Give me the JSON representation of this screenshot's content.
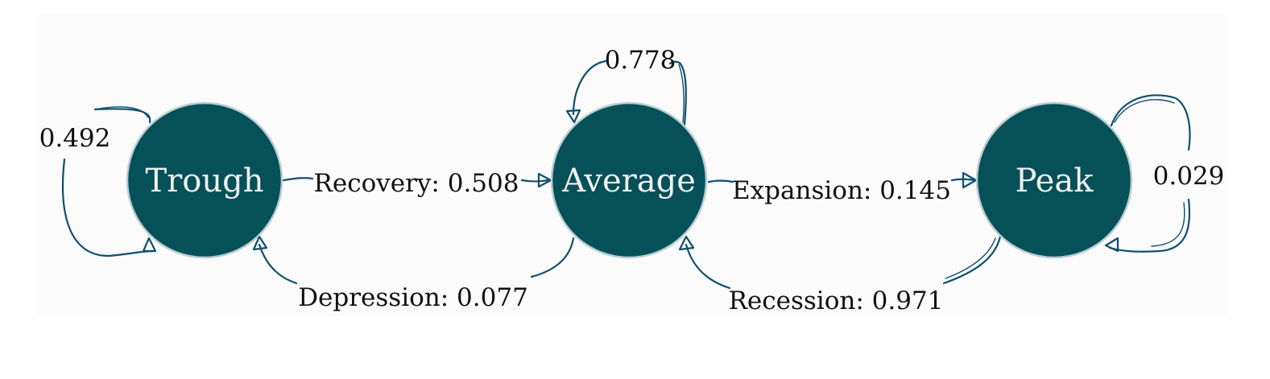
{
  "nodes": {
    "trough": {
      "label": "Trough"
    },
    "average": {
      "label": "Average"
    },
    "peak": {
      "label": "Peak"
    }
  },
  "edges": {
    "trough_self": {
      "label": "0.492"
    },
    "average_self": {
      "label": "0.778"
    },
    "peak_self": {
      "label": "0.029"
    },
    "recovery": {
      "label": "Recovery: 0.508"
    },
    "expansion": {
      "label": "Expansion: 0.145"
    },
    "depression": {
      "label": "Depression: 0.077"
    },
    "recession": {
      "label": "Recession: 0.971"
    }
  },
  "colors": {
    "node_fill": "#065058",
    "edge_stroke": "#0e4f6c",
    "background": "#fbfbfc"
  }
}
